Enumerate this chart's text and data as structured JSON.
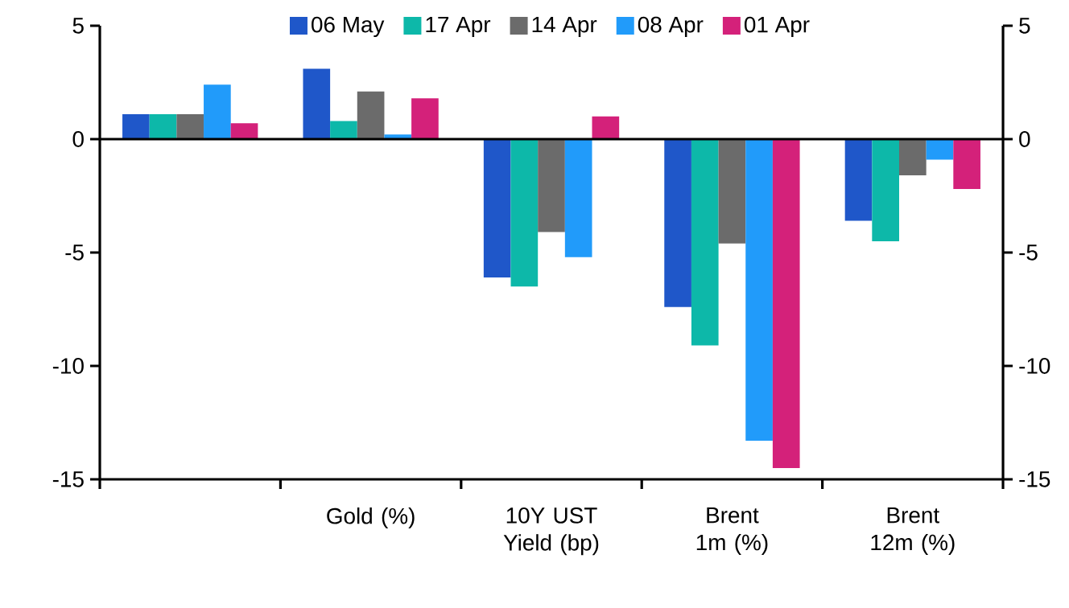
{
  "chart_data": {
    "type": "bar",
    "categories": [
      null,
      "Gold  (%)",
      "10Y UST Yield (bp)",
      "Brent 1m (%)",
      "Brent 12m (%)"
    ],
    "series": [
      {
        "name": "06 May",
        "color": "#1f57c9",
        "values": [
          1.1,
          3.1,
          -6.1,
          -7.4,
          -3.6
        ]
      },
      {
        "name": "17 Apr",
        "color": "#0db8a9",
        "values": [
          1.1,
          0.8,
          -6.5,
          -9.1,
          -4.5
        ]
      },
      {
        "name": "14 Apr",
        "color": "#6b6b6b",
        "values": [
          1.1,
          2.1,
          -4.1,
          -4.6,
          -1.6
        ]
      },
      {
        "name": "08 Apr",
        "color": "#219bfa",
        "values": [
          2.4,
          0.2,
          -5.2,
          -13.3,
          -0.9
        ]
      },
      {
        "name": "01 Apr",
        "color": "#d4217a",
        "values": [
          0.7,
          1.8,
          1.0,
          -14.5,
          -2.2
        ]
      }
    ],
    "ylim": [
      -15,
      5
    ],
    "yticks": [
      -15,
      -10,
      -5,
      0,
      5
    ],
    "y2lim": [
      -15,
      5
    ],
    "y2ticks": [
      -15,
      -10,
      -5,
      0,
      5
    ],
    "legend": "top"
  }
}
